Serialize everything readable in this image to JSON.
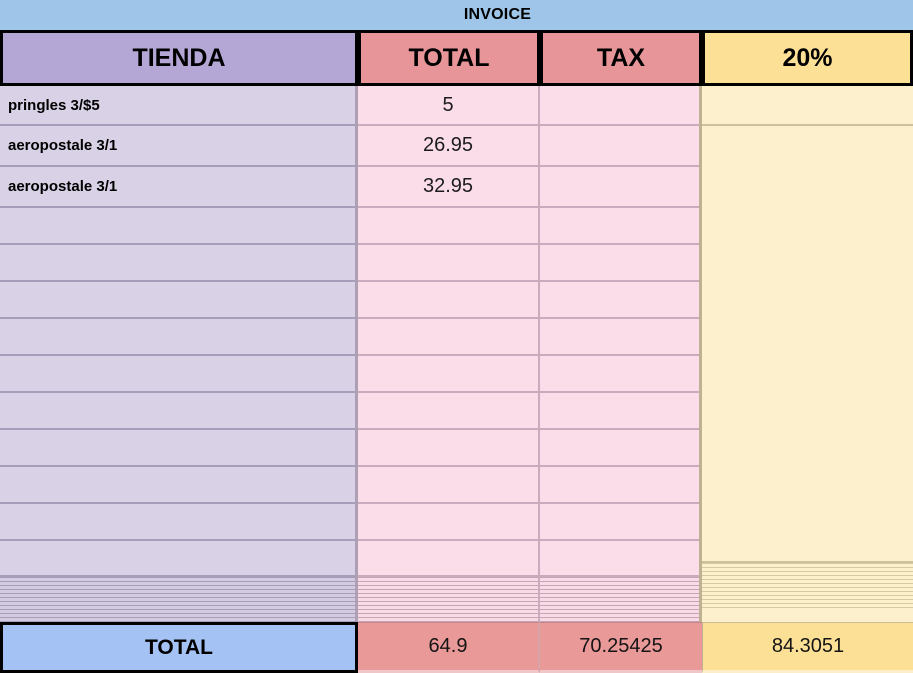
{
  "title": "INVOICE",
  "columns": [
    {
      "key": "tienda",
      "label": "TIENDA"
    },
    {
      "key": "total",
      "label": "TOTAL"
    },
    {
      "key": "tax",
      "label": "TAX"
    },
    {
      "key": "pct",
      "label": "20%"
    }
  ],
  "rows": [
    {
      "tienda": "pringles 3/$5",
      "total": "5",
      "tax": ""
    },
    {
      "tienda": "aeropostale 3/1",
      "total": "26.95",
      "tax": ""
    },
    {
      "tienda": "aeropostale 3/1",
      "total": "32.95",
      "tax": ""
    },
    {
      "tienda": "",
      "total": "",
      "tax": ""
    },
    {
      "tienda": "",
      "total": "",
      "tax": ""
    },
    {
      "tienda": "",
      "total": "",
      "tax": ""
    },
    {
      "tienda": "",
      "total": "",
      "tax": ""
    },
    {
      "tienda": "",
      "total": "",
      "tax": ""
    },
    {
      "tienda": "",
      "total": "",
      "tax": ""
    },
    {
      "tienda": "",
      "total": "",
      "tax": ""
    },
    {
      "tienda": "",
      "total": "",
      "tax": ""
    },
    {
      "tienda": "",
      "total": "",
      "tax": ""
    },
    {
      "tienda": "",
      "total": "",
      "tax": ""
    }
  ],
  "footer": {
    "label": "TOTAL",
    "total": "64.9",
    "tax": "70.25425",
    "pct": "84.3051"
  },
  "colors": {
    "band_blue": "#9fc5e8",
    "header_purple": "#b4a7d6",
    "header_salmon": "#e89599",
    "header_yellow": "#fbe096",
    "body_lavender": "#d9d2e6",
    "body_pink": "#fbdde9",
    "body_yellow": "#fdf0cd",
    "footer_blue": "#a4c2f4",
    "footer_salmon": "#ea9999",
    "footer_yellow": "#fbe096"
  }
}
